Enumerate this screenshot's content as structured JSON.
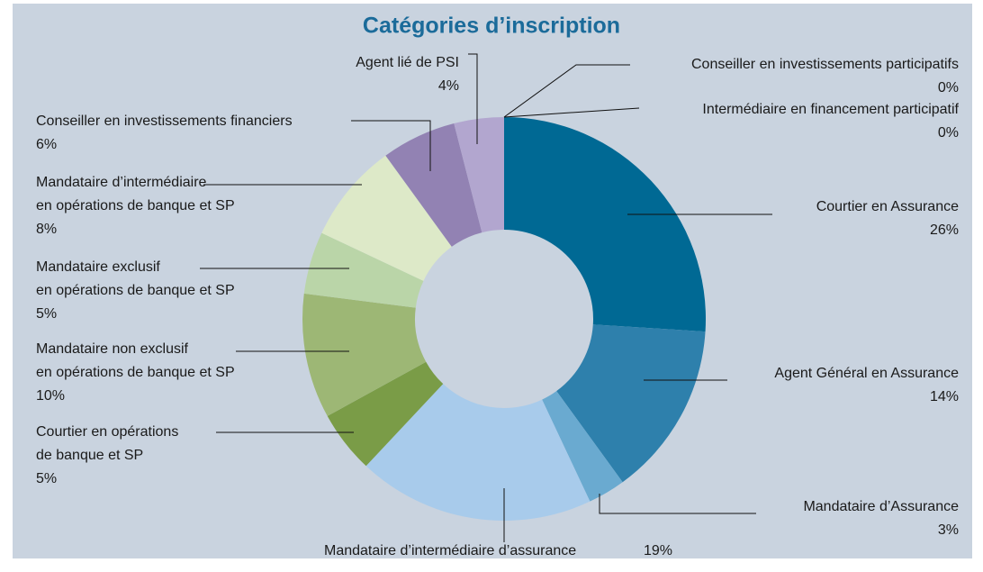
{
  "chart_data": {
    "type": "donut",
    "title": "Catégories d’inscription",
    "categories": [
      [
        "Courtier en Assurance"
      ],
      [
        "Agent Général en Assurance"
      ],
      [
        "Mandataire d’Assurance"
      ],
      [
        "Mandataire d’intermédiaire d’assurance"
      ],
      [
        "Courtier en opérations",
        "de banque et SP"
      ],
      [
        "Mandataire non exclusif",
        "en opérations de banque et SP"
      ],
      [
        "Mandataire exclusif",
        "en opérations de banque et SP"
      ],
      [
        "Mandataire d’intermédiaire",
        "en opérations de banque et SP"
      ],
      [
        "Conseiller en investissements financiers"
      ],
      [
        "Agent lié de PSI"
      ],
      [
        "Intermédiaire en financement participatif"
      ],
      [
        "Conseiller en investissements participatifs"
      ]
    ],
    "values": [
      26,
      14,
      3,
      19,
      5,
      10,
      5,
      8,
      6,
      4,
      0,
      0
    ],
    "value_labels": [
      "26%",
      "14%",
      "3%",
      "19%",
      "5%",
      "10%",
      "5%",
      "8%",
      "6%",
      "4%",
      "0%",
      "0%"
    ],
    "colors": [
      "#006994",
      "#2e80ac",
      "#6aaad0",
      "#a8cbeb",
      "#7a9c47",
      "#9db775",
      "#bad5a8",
      "#dde9c8",
      "#9282b3",
      "#b2a6cf",
      "#c9a6c9",
      "#8fa7c4"
    ]
  }
}
